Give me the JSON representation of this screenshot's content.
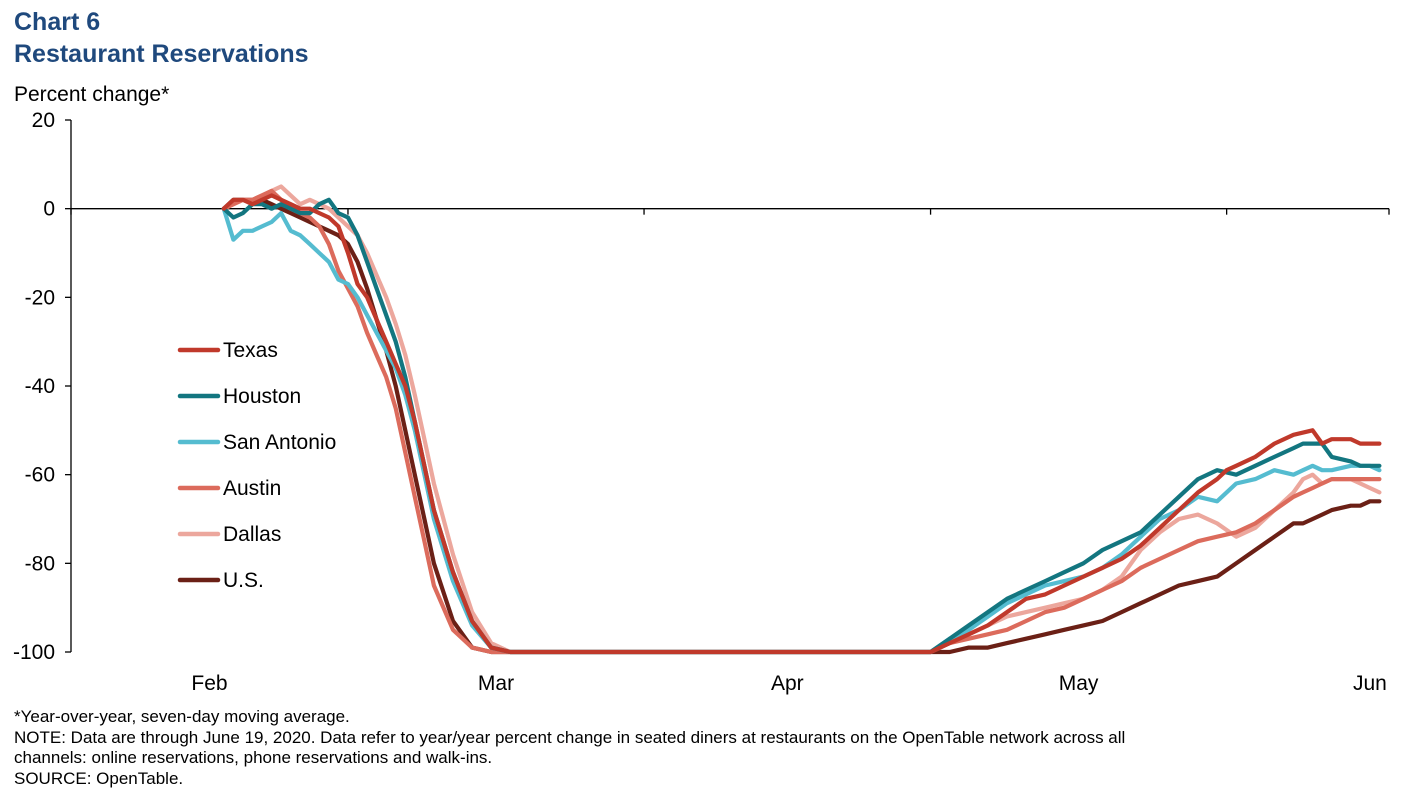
{
  "chart_data": {
    "type": "line",
    "title_line1": "Chart 6",
    "title_line2": "Restaurant Reservations",
    "ylabel": "Percent change*",
    "ylim": [
      -100,
      20
    ],
    "yticks": [
      "20",
      "0",
      "-20",
      "-40",
      "-60",
      "-80",
      "-100"
    ],
    "xlim_days": [
      0,
      138
    ],
    "x_labels": [
      "Feb",
      "Mar",
      "Apr",
      "May",
      "Jun"
    ],
    "grid": false,
    "legend_position": "left-center",
    "series": [
      {
        "name": "Texas",
        "color": "#c0392b",
        "x": [
          16,
          17,
          18,
          19,
          20,
          21,
          22,
          23,
          24,
          25,
          26,
          27,
          28,
          29,
          30,
          31,
          32,
          33,
          34,
          35,
          36,
          37,
          38,
          40,
          42,
          44,
          46,
          48,
          50,
          52,
          53,
          54,
          55,
          56,
          58,
          60,
          65,
          70,
          75,
          80,
          85,
          90,
          92,
          94,
          96,
          98,
          100,
          102,
          104,
          106,
          108,
          110,
          112,
          114,
          116,
          118,
          120,
          121,
          122,
          124,
          126,
          128,
          130,
          131,
          132,
          134,
          135,
          136,
          137
        ],
        "y": [
          0,
          2,
          2,
          1,
          2,
          3,
          2,
          1,
          0,
          0,
          -1,
          -2,
          -4,
          -10,
          -17,
          -20,
          -25,
          -30,
          -35,
          -40,
          -48,
          -58,
          -68,
          -82,
          -93,
          -99,
          -100,
          -100,
          -100,
          -100,
          -100,
          -100,
          -100,
          -100,
          -100,
          -100,
          -100,
          -100,
          -100,
          -100,
          -100,
          -100,
          -98,
          -96,
          -94,
          -91,
          -88,
          -87,
          -85,
          -83,
          -81,
          -79,
          -76,
          -72,
          -68,
          -64,
          -61,
          -59,
          -58,
          -56,
          -53,
          -51,
          -50,
          -53,
          -52,
          -52,
          -53,
          -53,
          -53
        ]
      },
      {
        "name": "Houston",
        "color": "#137680",
        "x": [
          16,
          17,
          18,
          19,
          20,
          21,
          22,
          23,
          24,
          25,
          26,
          27,
          28,
          29,
          30,
          31,
          32,
          33,
          34,
          35,
          36,
          37,
          38,
          40,
          42,
          44,
          46,
          48,
          50,
          52,
          53,
          54,
          55,
          56,
          58,
          60,
          65,
          70,
          75,
          80,
          85,
          90,
          92,
          94,
          96,
          98,
          100,
          102,
          104,
          106,
          108,
          110,
          112,
          114,
          116,
          118,
          120,
          122,
          124,
          126,
          128,
          129,
          130,
          131,
          132,
          134,
          135,
          136,
          137
        ],
        "y": [
          0,
          -2,
          -1,
          1,
          1,
          0,
          1,
          0,
          -1,
          -1,
          1,
          2,
          -1,
          -2,
          -6,
          -12,
          -18,
          -24,
          -30,
          -38,
          -48,
          -58,
          -68,
          -82,
          -93,
          -99,
          -100,
          -100,
          -100,
          -100,
          -100,
          -100,
          -100,
          -100,
          -100,
          -100,
          -100,
          -100,
          -100,
          -100,
          -100,
          -100,
          -97,
          -94,
          -91,
          -88,
          -86,
          -84,
          -82,
          -80,
          -77,
          -75,
          -73,
          -69,
          -65,
          -61,
          -59,
          -60,
          -58,
          -56,
          -54,
          -53,
          -53,
          -53,
          -56,
          -57,
          -58,
          -58,
          -58
        ]
      },
      {
        "name": "San Antonio",
        "color": "#55bcd0",
        "x": [
          16,
          17,
          18,
          19,
          20,
          21,
          22,
          23,
          24,
          25,
          26,
          27,
          28,
          29,
          30,
          31,
          32,
          33,
          34,
          35,
          36,
          37,
          38,
          40,
          42,
          44,
          46,
          48,
          50,
          52,
          53,
          54,
          55,
          56,
          58,
          60,
          65,
          70,
          75,
          80,
          85,
          90,
          92,
          94,
          96,
          98,
          100,
          102,
          104,
          106,
          108,
          110,
          112,
          114,
          116,
          118,
          120,
          122,
          124,
          126,
          128,
          129,
          130,
          131,
          132,
          134,
          135,
          136,
          137
        ],
        "y": [
          0,
          -7,
          -5,
          -5,
          -4,
          -3,
          -1,
          -5,
          -6,
          -8,
          -10,
          -12,
          -16,
          -17,
          -20,
          -24,
          -28,
          -32,
          -36,
          -42,
          -50,
          -60,
          -70,
          -84,
          -94,
          -99,
          -100,
          -100,
          -100,
          -100,
          -100,
          -100,
          -100,
          -100,
          -100,
          -100,
          -100,
          -100,
          -100,
          -100,
          -100,
          -100,
          -97,
          -95,
          -92,
          -89,
          -87,
          -85,
          -84,
          -83,
          -81,
          -78,
          -74,
          -70,
          -68,
          -65,
          -66,
          -62,
          -61,
          -59,
          -60,
          -59,
          -58,
          -59,
          -59,
          -58,
          -58,
          -58,
          -59
        ]
      },
      {
        "name": "Austin",
        "color": "#dc6b5c",
        "x": [
          16,
          17,
          18,
          19,
          20,
          21,
          22,
          23,
          24,
          25,
          26,
          27,
          28,
          29,
          30,
          31,
          32,
          33,
          34,
          35,
          36,
          37,
          38,
          40,
          42,
          44,
          46,
          48,
          50,
          52,
          53,
          54,
          55,
          56,
          58,
          60,
          65,
          70,
          75,
          80,
          85,
          90,
          92,
          94,
          96,
          98,
          100,
          102,
          104,
          106,
          108,
          110,
          112,
          114,
          116,
          118,
          120,
          122,
          124,
          126,
          128,
          129,
          130,
          131,
          132,
          134,
          135,
          136,
          137
        ],
        "y": [
          0,
          1,
          2,
          2,
          3,
          4,
          2,
          0,
          -1,
          -2,
          -4,
          -8,
          -14,
          -18,
          -22,
          -28,
          -33,
          -38,
          -45,
          -55,
          -65,
          -75,
          -85,
          -95,
          -99,
          -100,
          -100,
          -100,
          -100,
          -100,
          -100,
          -100,
          -100,
          -100,
          -100,
          -100,
          -100,
          -100,
          -100,
          -100,
          -100,
          -100,
          -98,
          -97,
          -96,
          -95,
          -93,
          -91,
          -90,
          -88,
          -86,
          -84,
          -81,
          -79,
          -77,
          -75,
          -74,
          -73,
          -71,
          -68,
          -65,
          -64,
          -63,
          -62,
          -61,
          -61,
          -61,
          -61,
          -61
        ]
      },
      {
        "name": "Dallas",
        "color": "#eca79d",
        "x": [
          16,
          17,
          18,
          19,
          20,
          21,
          22,
          23,
          24,
          25,
          26,
          27,
          28,
          29,
          30,
          31,
          32,
          33,
          34,
          35,
          36,
          37,
          38,
          40,
          42,
          44,
          46,
          48,
          50,
          52,
          53,
          54,
          55,
          56,
          58,
          60,
          65,
          70,
          75,
          80,
          85,
          90,
          92,
          94,
          96,
          98,
          100,
          102,
          104,
          106,
          108,
          110,
          112,
          114,
          116,
          118,
          119,
          120,
          122,
          124,
          126,
          128,
          129,
          130,
          131,
          132,
          134,
          135,
          136,
          137
        ],
        "y": [
          0,
          1,
          2,
          2,
          3,
          4,
          5,
          3,
          1,
          2,
          1,
          0,
          -2,
          -4,
          -6,
          -10,
          -15,
          -20,
          -26,
          -33,
          -42,
          -52,
          -62,
          -78,
          -91,
          -98,
          -100,
          -100,
          -100,
          -100,
          -100,
          -100,
          -100,
          -100,
          -100,
          -100,
          -100,
          -100,
          -100,
          -100,
          -100,
          -100,
          -98,
          -96,
          -94,
          -92,
          -91,
          -90,
          -89,
          -88,
          -86,
          -83,
          -77,
          -73,
          -70,
          -69,
          -70,
          -71,
          -74,
          -72,
          -68,
          -64,
          -61,
          -60,
          -62,
          -61,
          -61,
          -62,
          -63,
          -64
        ]
      },
      {
        "name": "U.S.",
        "color": "#6b2016",
        "x": [
          16,
          17,
          18,
          19,
          20,
          21,
          22,
          23,
          24,
          25,
          26,
          27,
          28,
          29,
          30,
          31,
          32,
          33,
          34,
          35,
          36,
          37,
          38,
          40,
          42,
          44,
          46,
          48,
          50,
          52,
          53,
          54,
          55,
          56,
          58,
          60,
          65,
          70,
          75,
          80,
          85,
          90,
          92,
          94,
          96,
          98,
          100,
          102,
          104,
          106,
          108,
          110,
          112,
          114,
          116,
          118,
          120,
          122,
          124,
          126,
          128,
          129,
          130,
          131,
          132,
          134,
          135,
          136,
          137
        ],
        "y": [
          0,
          2,
          2,
          2,
          2,
          1,
          0,
          -1,
          -2,
          -3,
          -4,
          -5,
          -6,
          -8,
          -12,
          -18,
          -25,
          -32,
          -40,
          -50,
          -60,
          -70,
          -80,
          -93,
          -99,
          -100,
          -100,
          -100,
          -100,
          -100,
          -100,
          -100,
          -100,
          -100,
          -100,
          -100,
          -100,
          -100,
          -100,
          -100,
          -100,
          -100,
          -100,
          -99,
          -99,
          -98,
          -97,
          -96,
          -95,
          -94,
          -93,
          -91,
          -89,
          -87,
          -85,
          -84,
          -83,
          -80,
          -77,
          -74,
          -71,
          -71,
          -70,
          -69,
          -68,
          -67,
          -67,
          -66,
          -66
        ]
      }
    ]
  },
  "footnotes": {
    "line1": "*Year-over-year, seven-day moving average.",
    "line2": "NOTE: Data are through June 19, 2020. Data refer to year/year percent change in seated diners at restaurants on the OpenTable network across all",
    "line3": "channels: online reservations, phone reservations and walk-ins.",
    "line4": "SOURCE: OpenTable."
  }
}
